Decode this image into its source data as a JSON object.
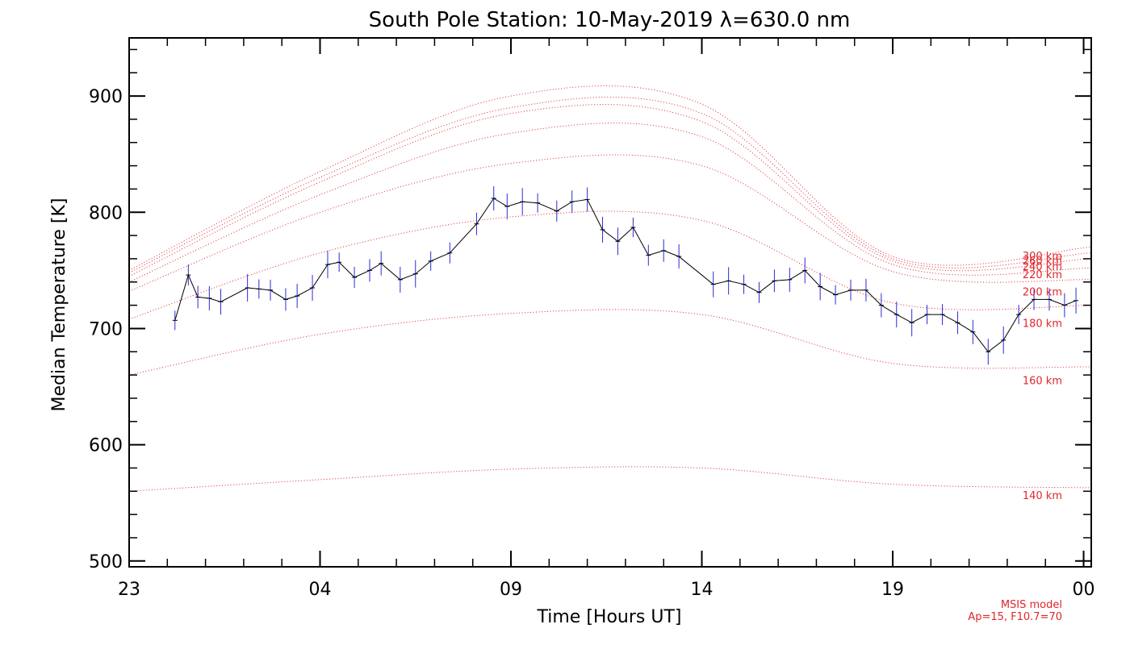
{
  "chart_data": {
    "type": "line",
    "title": "South Pole Station: 10-May-2019 λ=630.0 nm",
    "xlabel": "Time [Hours UT]",
    "ylabel": "Median Temperature [K]",
    "xlim": [
      23,
      48.2
    ],
    "ylim": [
      495,
      950
    ],
    "x_tick_hours": [
      23,
      28,
      33,
      38,
      43,
      48
    ],
    "x_tick_labels": [
      "23",
      "04",
      "09",
      "14",
      "19",
      "00"
    ],
    "y_ticks": [
      500,
      600,
      700,
      800,
      900
    ],
    "y_tick_labels": [
      "500",
      "600",
      "700",
      "800",
      "900"
    ],
    "grid": false,
    "colors": {
      "data": "#000000",
      "error_bars": "#2b2bd6",
      "model": "#e0262b"
    },
    "model_note": [
      "MSIS model",
      "Ap=15, F10.7=70"
    ],
    "model_curves": [
      {
        "name": "140 km",
        "label_value": 556,
        "x": [
          23,
          28,
          33,
          38,
          43,
          48.2
        ],
        "y": [
          560,
          570,
          579,
          580,
          566,
          563
        ]
      },
      {
        "name": "160 km",
        "label_value": 655,
        "x": [
          23,
          28,
          33,
          38,
          43,
          48.2
        ],
        "y": [
          660,
          695,
          713,
          712,
          670,
          667
        ]
      },
      {
        "name": "180 km",
        "label_value": 704,
        "x": [
          23,
          28,
          33,
          38,
          43,
          48.2
        ],
        "y": [
          708,
          765,
          796,
          793,
          722,
          720
        ]
      },
      {
        "name": "200 km",
        "label_value": 731,
        "x": [
          23,
          28,
          33,
          38,
          43,
          48.2
        ],
        "y": [
          732,
          800,
          842,
          840,
          749,
          742
        ]
      },
      {
        "name": "220 km",
        "label_value": 746,
        "x": [
          23,
          28,
          33,
          38,
          43,
          48.2
        ],
        "y": [
          740,
          815,
          868,
          865,
          755,
          752
        ]
      },
      {
        "name": "240 km",
        "label_value": 753,
        "x": [
          23,
          28,
          33,
          38,
          43,
          48.2
        ],
        "y": [
          745,
          826,
          885,
          878,
          758,
          760
        ]
      },
      {
        "name": "260 km",
        "label_value": 758,
        "x": [
          23,
          28,
          33,
          38,
          43,
          48.2
        ],
        "y": [
          748,
          830,
          890,
          885,
          760,
          765
        ]
      },
      {
        "name": "300 km",
        "label_value": 762,
        "x": [
          23,
          28,
          33,
          38,
          43,
          48.2
        ],
        "y": [
          750,
          835,
          900,
          893,
          762,
          770
        ]
      }
    ],
    "series": [
      {
        "x": [
          24.2,
          24.55,
          24.8,
          25.1,
          25.4,
          26.1,
          26.4,
          26.7,
          27.1,
          27.4,
          27.8,
          28.2,
          28.5,
          28.9,
          29.3,
          29.6,
          30.1,
          30.5,
          30.9,
          31.4,
          32.1,
          32.55,
          32.9,
          33.3,
          33.7,
          34.2,
          34.6,
          35.0,
          35.4,
          35.8,
          36.2,
          36.6,
          37.0,
          37.4,
          38.3,
          38.7,
          39.1,
          39.5,
          39.9,
          40.3,
          40.7,
          41.1,
          41.5,
          41.9,
          42.3,
          42.7,
          43.1,
          43.5,
          43.9,
          44.3,
          44.7,
          45.1,
          45.5,
          45.9,
          46.3,
          46.7,
          47.1,
          47.5,
          47.8
        ],
        "y": [
          707,
          746,
          727,
          726,
          723,
          735,
          734,
          733,
          725,
          728,
          735,
          755,
          757,
          744,
          750,
          756,
          742,
          747,
          758,
          765,
          790,
          812,
          805,
          809,
          808,
          801,
          809,
          811,
          785,
          775,
          787,
          763,
          767,
          762,
          738,
          741,
          738,
          731,
          741,
          742,
          750,
          736,
          729,
          733,
          733,
          720,
          712,
          705,
          712,
          712,
          705,
          697,
          680,
          690,
          712,
          725,
          725,
          720,
          724
        ]
      }
    ]
  }
}
